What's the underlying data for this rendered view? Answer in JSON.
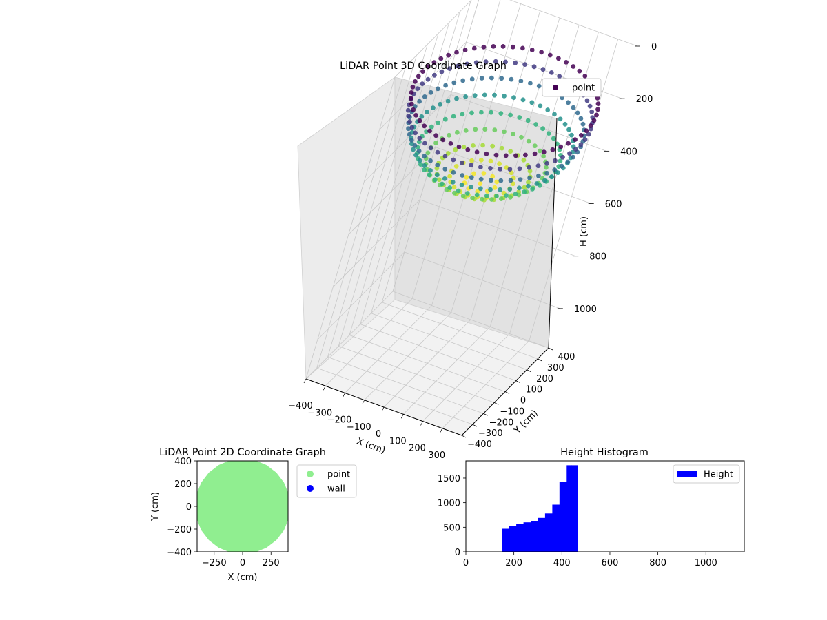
{
  "chart_data": [
    {
      "type": "scatter",
      "projection": "3d",
      "title": "LiDAR Point 3D Coordinate Graph",
      "xlabel": "X (cm)",
      "ylabel": "Y (cm)",
      "zlabel": "H (cm)",
      "xlim": [
        -400,
        400
      ],
      "ylim": [
        -400,
        400
      ],
      "zlim": [
        1150,
        0
      ],
      "z_inverted": true,
      "xticks": [
        -400,
        -300,
        -200,
        -100,
        0,
        100,
        200,
        300
      ],
      "yticks": [
        -400,
        -300,
        -200,
        -100,
        0,
        100,
        200,
        300,
        400
      ],
      "zticks": [
        0,
        200,
        400,
        600,
        800,
        1000
      ],
      "grid": true,
      "legend": {
        "position": "top-right",
        "entries": [
          "point"
        ]
      },
      "colormap": "viridis",
      "series": [
        {
          "name": "point",
          "shape": "hemispherical bowl",
          "rim_radius": 420,
          "rim_height": 150,
          "bottom_height": 465,
          "color": "#440154"
        }
      ]
    },
    {
      "type": "scatter",
      "title": "LiDAR Point 2D Coordinate Graph",
      "xlabel": "X (cm)",
      "ylabel": "Y (cm)",
      "xlim": [
        -400,
        400
      ],
      "ylim": [
        -400,
        400
      ],
      "xticks": [
        -250,
        0,
        250
      ],
      "yticks": [
        -400,
        -200,
        0,
        200,
        400
      ],
      "grid": false,
      "legend": {
        "position": "outside-right",
        "entries": [
          "point",
          "wall"
        ]
      },
      "series": [
        {
          "name": "point",
          "color": "#90ee90",
          "region": "filled disk",
          "radius": 420
        },
        {
          "name": "wall",
          "color": "#0000ff",
          "points": []
        }
      ]
    },
    {
      "type": "bar",
      "subtype": "histogram",
      "title": "Height Histogram",
      "xlim": [
        0,
        1160
      ],
      "ylim": [
        0,
        1850
      ],
      "xticks": [
        0,
        200,
        400,
        600,
        800,
        1000
      ],
      "yticks": [
        0,
        500,
        1000,
        1500
      ],
      "grid": false,
      "legend": {
        "position": "top-right",
        "entries": [
          "Height"
        ]
      },
      "series": [
        {
          "name": "Height",
          "color": "#0000ff",
          "bin_edges": [
            150,
            180,
            210,
            240,
            270,
            300,
            330,
            360,
            390,
            420,
            440,
            465
          ],
          "values": [
            470,
            520,
            570,
            600,
            630,
            690,
            780,
            960,
            1420,
            1760,
            1760
          ]
        }
      ]
    }
  ]
}
